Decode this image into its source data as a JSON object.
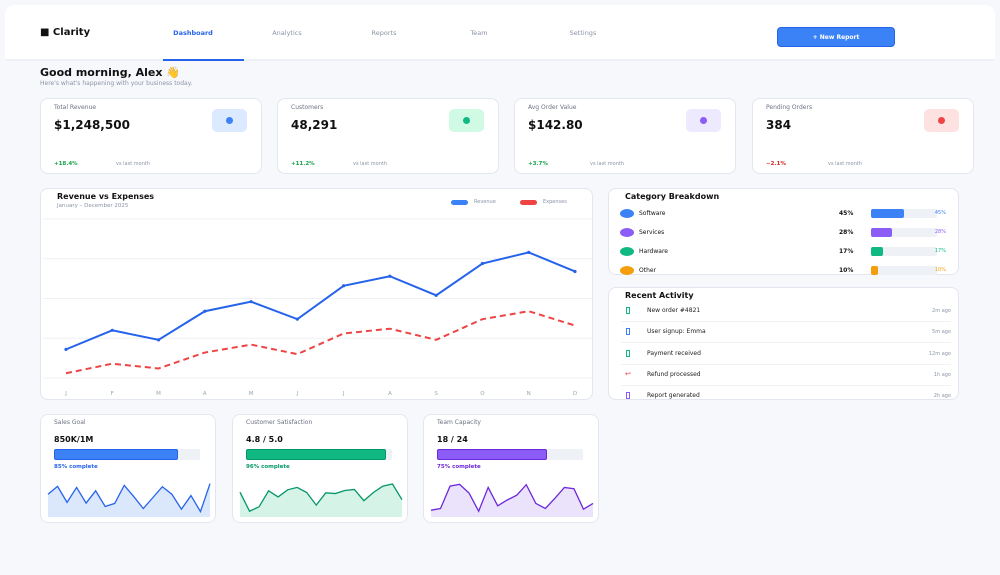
{
  "app": {
    "logo": "■ Clarity"
  },
  "nav": {
    "items": [
      "Dashboard",
      "Analytics",
      "Reports",
      "Team",
      "Settings"
    ],
    "active": "Dashboard",
    "new_report": "+ New Report"
  },
  "greeting": {
    "title": "Good morning, Alex 👋",
    "subtitle": "Here's what's happening with your business today."
  },
  "stats": [
    {
      "label": "Total Revenue",
      "value": "$1,248,500",
      "change": "+18.4%",
      "vs": "vs last month",
      "color": "#3b82f6",
      "bg": "#dbeafe",
      "change_color": "#16a34a"
    },
    {
      "label": "Customers",
      "value": "48,291",
      "change": "+11.2%",
      "vs": "vs last month",
      "color": "#10b981",
      "bg": "#d1fae5",
      "change_color": "#16a34a"
    },
    {
      "label": "Avg Order Value",
      "value": "$142.80",
      "change": "+3.7%",
      "vs": "vs last month",
      "color": "#8b5cf6",
      "bg": "#ede9fe",
      "change_color": "#16a34a"
    },
    {
      "label": "Pending Orders",
      "value": "384",
      "change": "−2.1%",
      "vs": "vs last month",
      "color": "#ef4444",
      "bg": "#fee2e2",
      "change_color": "#dc2626"
    }
  ],
  "chart_data": {
    "type": "line",
    "title": "Revenue vs Expenses",
    "subtitle": "January – December 2025",
    "categories": [
      "J",
      "F",
      "M",
      "A",
      "M",
      "J",
      "J",
      "A",
      "S",
      "O",
      "N",
      "D"
    ],
    "series": [
      {
        "name": "Revenue",
        "color": "#2563eb",
        "style": "solid",
        "values": [
          18,
          30,
          24,
          42,
          48,
          37,
          58,
          64,
          52,
          72,
          79,
          67
        ]
      },
      {
        "name": "Expenses",
        "color": "#ef4444",
        "style": "dashed",
        "values": [
          3,
          9,
          6,
          16,
          21,
          15,
          28,
          31,
          24,
          37,
          42,
          33
        ]
      }
    ],
    "ylim": [
      0,
      100
    ],
    "grid": true,
    "legend": "top-right"
  },
  "categories": {
    "title": "Category Breakdown",
    "items": [
      {
        "name": "Software",
        "pct": 45,
        "label": "45%",
        "color": "#3b82f6"
      },
      {
        "name": "Services",
        "pct": 28,
        "label": "28%",
        "color": "#8b5cf6"
      },
      {
        "name": "Hardware",
        "pct": 17,
        "label": "17%",
        "color": "#10b981"
      },
      {
        "name": "Other",
        "pct": 10,
        "label": "10%",
        "color": "#f59e0b"
      }
    ]
  },
  "activity": {
    "title": "Recent Activity",
    "items": [
      {
        "icon": "package-icon",
        "text": "New order #4821",
        "time": "2m ago",
        "color": "#10b981"
      },
      {
        "icon": "user-icon",
        "text": "User signup: Emma",
        "time": "5m ago",
        "color": "#3b82f6"
      },
      {
        "icon": "money-icon",
        "text": "Payment received",
        "time": "12m ago",
        "color": "#10b981"
      },
      {
        "icon": "refund-arrow-icon",
        "text": "Refund processed",
        "time": "1h ago",
        "color": "#ef4444",
        "glyph": "↩"
      },
      {
        "icon": "document-icon",
        "text": "Report generated",
        "time": "2h ago",
        "color": "#8b5cf6"
      }
    ]
  },
  "goals": [
    {
      "label": "Sales Goal",
      "value": "850K/1M",
      "progress": 85,
      "progress_label": "85% complete",
      "color": "#3b82f6",
      "line": "#2563eb",
      "fillc": "#dbe7fb",
      "spark": [
        67,
        90,
        43,
        87,
        41,
        77,
        31,
        40,
        93,
        60,
        25,
        57,
        89,
        67,
        23,
        63,
        16,
        98
      ]
    },
    {
      "label": "Customer Satisfaction",
      "value": "4.8 / 5.0",
      "progress": 96,
      "progress_label": "96% complete",
      "color": "#10b981",
      "line": "#059669",
      "fillc": "#d5f3e6",
      "spark": [
        73,
        17,
        30,
        77,
        59,
        80,
        87,
        72,
        35,
        71,
        69,
        78,
        81,
        48,
        72,
        91,
        97,
        51
      ]
    },
    {
      "label": "Team Capacity",
      "value": "18 / 24",
      "progress": 75,
      "progress_label": "75% complete",
      "color": "#8b5cf6",
      "line": "#6d28d9",
      "fillc": "#ebe3fb",
      "spark": [
        20,
        25,
        91,
        96,
        70,
        17,
        87,
        33,
        50,
        64,
        95,
        40,
        25,
        55,
        87,
        83,
        23,
        40
      ]
    }
  ]
}
